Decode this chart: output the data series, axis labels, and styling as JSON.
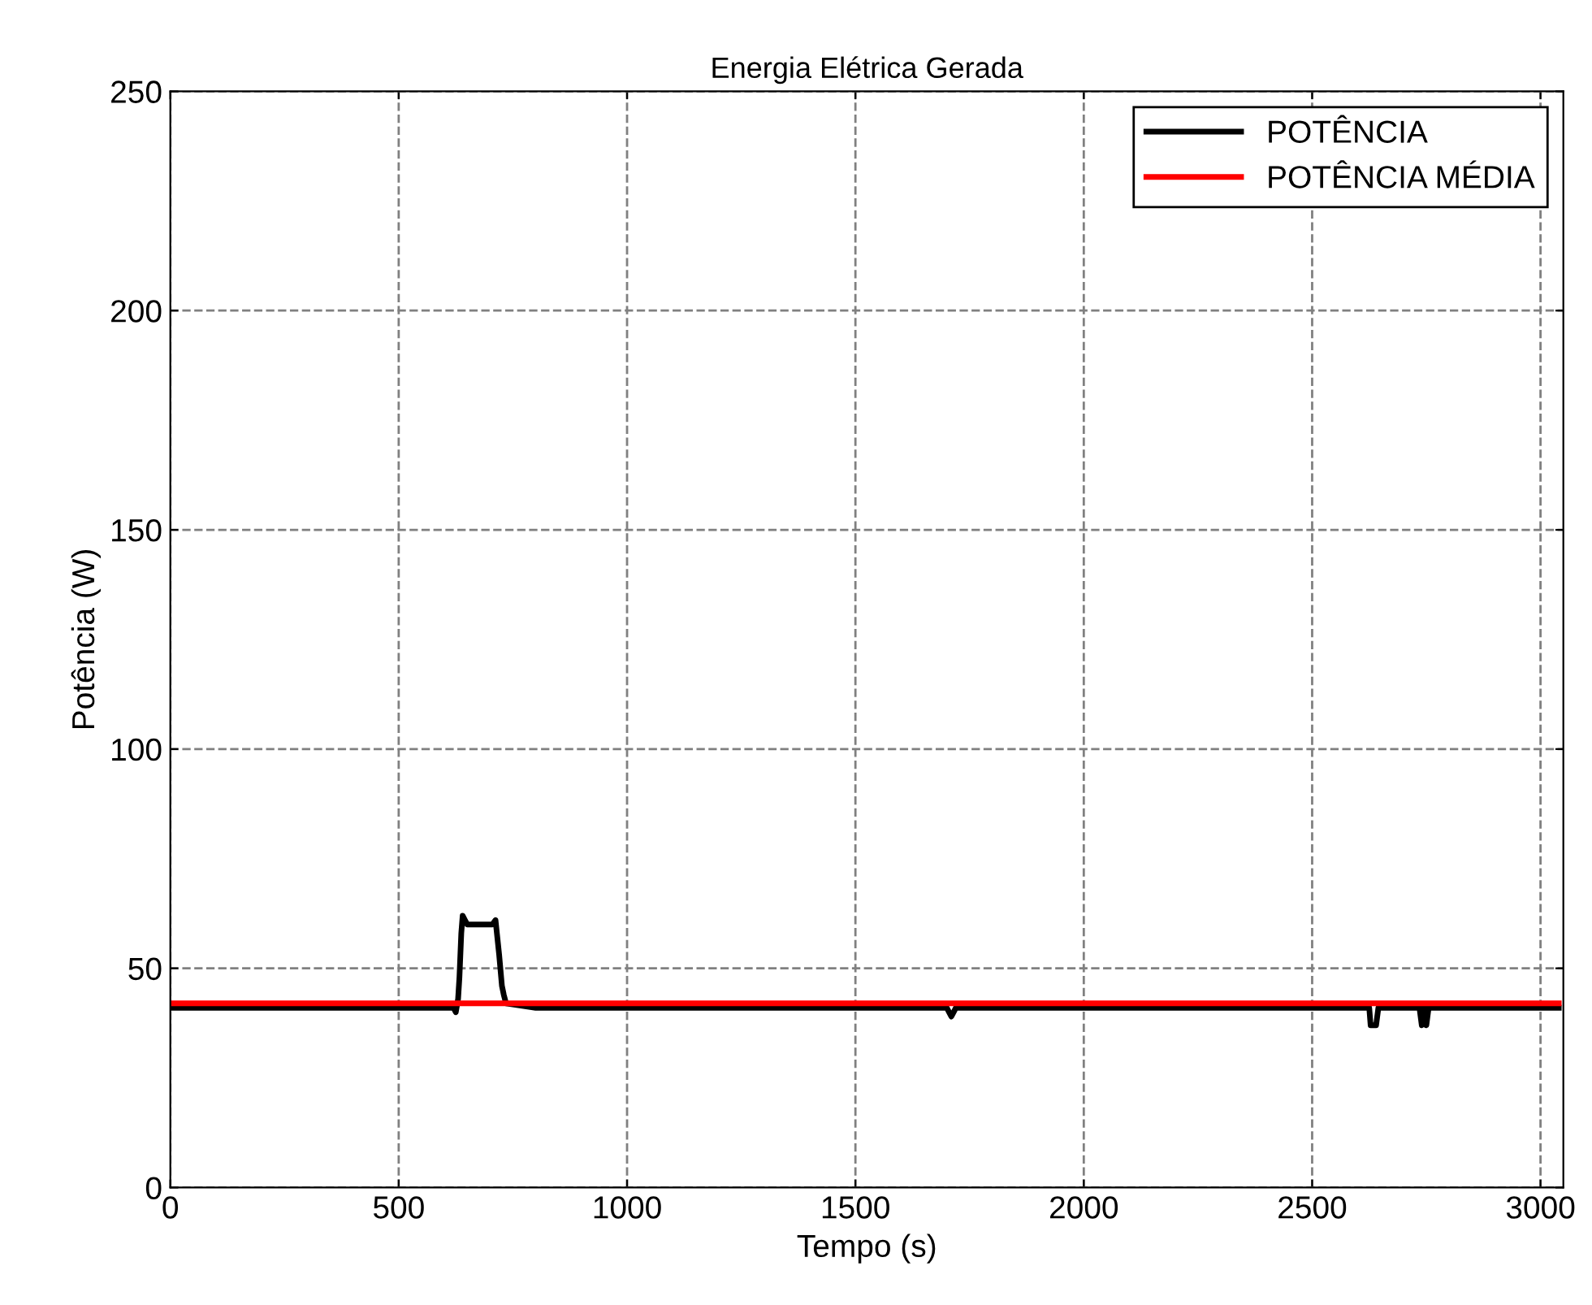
{
  "chart_data": {
    "type": "line",
    "title": "Energia Elétrica Gerada",
    "xlabel": "Tempo (s)",
    "ylabel": "Potência (W)",
    "xlim": [
      0,
      3050
    ],
    "ylim": [
      0,
      250
    ],
    "xticks": [
      0,
      500,
      1000,
      1500,
      2000,
      2500,
      3000
    ],
    "yticks": [
      0,
      50,
      100,
      150,
      200,
      250
    ],
    "grid": true,
    "legend": "top right",
    "line_style": "solid",
    "marker": "none",
    "series": [
      {
        "name": "POTÊNCIA",
        "color": "#000000",
        "x": [
          0,
          620,
          625,
          630,
          633,
          637,
          640,
          645,
          650,
          660,
          680,
          700,
          705,
          712,
          716,
          720,
          726,
          730,
          735,
          800,
          1000,
          1500,
          1700,
          1705,
          1710,
          1715,
          1720,
          2000,
          2600,
          2625,
          2628,
          2635,
          2640,
          2645,
          2700,
          2735,
          2740,
          2745,
          2750,
          2755,
          2760,
          2800,
          2850,
          2900,
          2950,
          3000,
          3040
        ],
        "values": [
          41,
          41,
          40,
          43,
          48,
          58,
          62,
          61,
          60,
          60,
          60,
          60,
          60,
          61,
          57,
          53,
          46,
          44,
          42,
          41,
          41,
          41,
          41,
          40,
          39,
          40,
          41,
          41,
          41,
          41,
          37,
          37,
          37,
          41,
          41,
          41,
          37,
          41,
          37,
          41,
          41,
          41,
          41,
          41,
          41,
          41,
          41
        ]
      },
      {
        "name": "POTÊNCIA MÉDIA",
        "color": "#ff0000",
        "x": [
          0,
          3040
        ],
        "values": [
          42,
          42
        ]
      }
    ]
  }
}
